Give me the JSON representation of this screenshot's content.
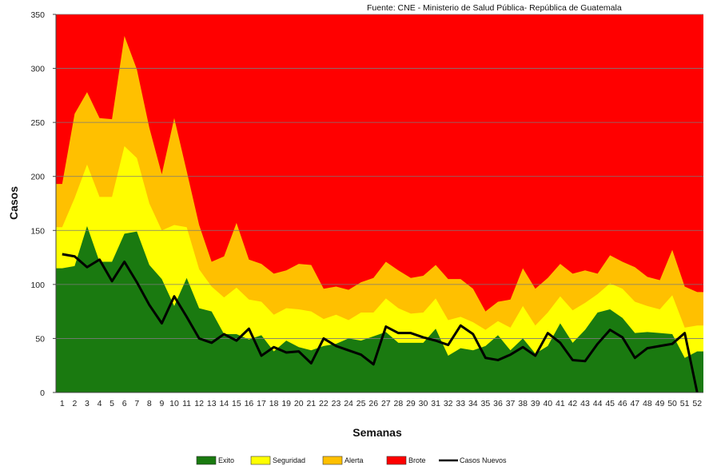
{
  "chart_data": {
    "type": "area",
    "source_note": "Fuente: CNE - Ministerio de Salud Pública- República de Guatemala",
    "xlabel": "Semanas",
    "ylabel": "Casos",
    "ylim": [
      0,
      350
    ],
    "yticks": [
      0,
      50,
      100,
      150,
      200,
      250,
      300,
      350
    ],
    "grid": true,
    "legend_position": "bottom",
    "x": [
      1,
      2,
      3,
      4,
      5,
      6,
      7,
      8,
      9,
      10,
      11,
      12,
      13,
      14,
      15,
      16,
      17,
      18,
      19,
      20,
      21,
      22,
      23,
      24,
      25,
      26,
      27,
      28,
      29,
      30,
      31,
      32,
      33,
      34,
      35,
      36,
      37,
      38,
      39,
      40,
      41,
      42,
      43,
      44,
      45,
      46,
      47,
      48,
      49,
      50,
      51,
      52
    ],
    "colors": {
      "Brote": "#ff0000",
      "Alerta": "#ffc000",
      "Seguridad": "#ffff00",
      "Exito": "#1a7a10",
      "Casos Nuevos": "#000000"
    },
    "series": [
      {
        "name": "Brote",
        "kind": "area",
        "values": [
          350,
          350,
          350,
          350,
          350,
          350,
          350,
          350,
          350,
          350,
          350,
          350,
          350,
          350,
          350,
          350,
          350,
          350,
          350,
          350,
          350,
          350,
          350,
          350,
          350,
          350,
          350,
          350,
          350,
          350,
          350,
          350,
          350,
          350,
          350,
          350,
          350,
          350,
          350,
          350,
          350,
          350,
          350,
          350,
          350,
          350,
          350,
          350,
          350,
          350,
          350,
          350
        ]
      },
      {
        "name": "Alerta",
        "kind": "area",
        "values": [
          193,
          258,
          278,
          254,
          253,
          330,
          299,
          245,
          202,
          254,
          205,
          155,
          121,
          126,
          157,
          123,
          119,
          110,
          113,
          119,
          118,
          96,
          98,
          95,
          102,
          106,
          121,
          113,
          106,
          108,
          118,
          105,
          105,
          96,
          75,
          84,
          86,
          115,
          96,
          106,
          119,
          110,
          113,
          110,
          127,
          121,
          116,
          107,
          104,
          132,
          98,
          93
        ]
      },
      {
        "name": "Seguridad",
        "kind": "area",
        "values": [
          153,
          180,
          211,
          181,
          181,
          228,
          217,
          175,
          150,
          155,
          153,
          114,
          98,
          88,
          97,
          86,
          84,
          72,
          78,
          77,
          75,
          68,
          72,
          67,
          74,
          74,
          87,
          78,
          73,
          74,
          87,
          67,
          70,
          65,
          58,
          66,
          60,
          80,
          62,
          74,
          89,
          76,
          83,
          91,
          101,
          96,
          84,
          80,
          77,
          90,
          60,
          62
        ]
      },
      {
        "name": "Exito",
        "kind": "area",
        "values": [
          115,
          117,
          154,
          121,
          121,
          147,
          149,
          118,
          105,
          80,
          106,
          78,
          75,
          54,
          54,
          49,
          53,
          38,
          48,
          42,
          39,
          43,
          45,
          50,
          48,
          52,
          56,
          46,
          46,
          46,
          59,
          34,
          41,
          39,
          43,
          53,
          39,
          50,
          36,
          43,
          64,
          46,
          58,
          74,
          77,
          69,
          55,
          56,
          55,
          54,
          32,
          38
        ]
      },
      {
        "name": "Casos Nuevos",
        "kind": "line",
        "values": [
          128,
          126,
          116,
          123,
          103,
          121,
          102,
          81,
          64,
          89,
          70,
          50,
          46,
          54,
          48,
          59,
          34,
          42,
          37,
          38,
          27,
          50,
          43,
          39,
          35,
          26,
          61,
          55,
          55,
          51,
          48,
          44,
          62,
          54,
          32,
          30,
          35,
          42,
          34,
          55,
          46,
          30,
          29,
          45,
          58,
          51,
          32,
          41,
          43,
          45,
          55,
          0
        ]
      }
    ],
    "legend": [
      "Exito",
      "Seguridad",
      "Alerta",
      "Brote",
      "Casos Nuevos"
    ]
  }
}
